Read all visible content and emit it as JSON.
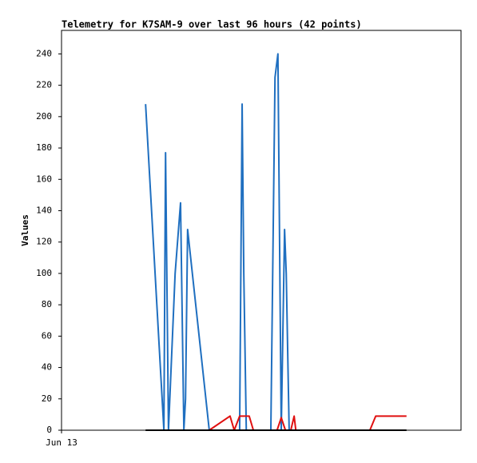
{
  "chart_data": {
    "type": "line",
    "title": "Telemetry for K7SAM-9 over last 96 hours (42 points)",
    "y_label": "Values",
    "xlim": [
      0,
      96
    ],
    "xticks": [
      {
        "value": 0,
        "label": "Jun 13"
      }
    ],
    "ylim": [
      0,
      255
    ],
    "yticks": [
      0,
      20,
      40,
      60,
      80,
      100,
      120,
      140,
      160,
      180,
      200,
      220,
      240
    ],
    "grid": false,
    "series": [
      {
        "color": "#1f6fc0",
        "x": [
          20.2,
          24.6,
          25.0,
          25.7,
          27.3,
          28.6,
          29.4,
          29.8,
          30.3,
          35.5,
          42.8,
          43.4,
          43.8,
          44.4,
          50.3,
          51.3,
          52.0,
          52.8,
          53.6,
          54.0,
          54.7
        ],
        "values": [
          208,
          0,
          177,
          0,
          100,
          145,
          0,
          20,
          128,
          0,
          0,
          208,
          100,
          0,
          0,
          225,
          240,
          0,
          128,
          100,
          0
        ]
      },
      {
        "color": "#e01010",
        "x": [
          35.5,
          40.5,
          41.5,
          42.8,
          45.1,
          46.1,
          51.8,
          52.8,
          53.8,
          55.1,
          55.9,
          56.3,
          74.1,
          75.5,
          82.9
        ],
        "values": [
          0,
          9,
          0,
          9,
          9,
          0,
          0,
          8,
          0,
          0,
          9,
          0,
          0,
          9,
          9
        ]
      },
      {
        "color": "#000000",
        "x": [
          20.2,
          82.9
        ],
        "values": [
          0,
          0
        ]
      }
    ]
  }
}
